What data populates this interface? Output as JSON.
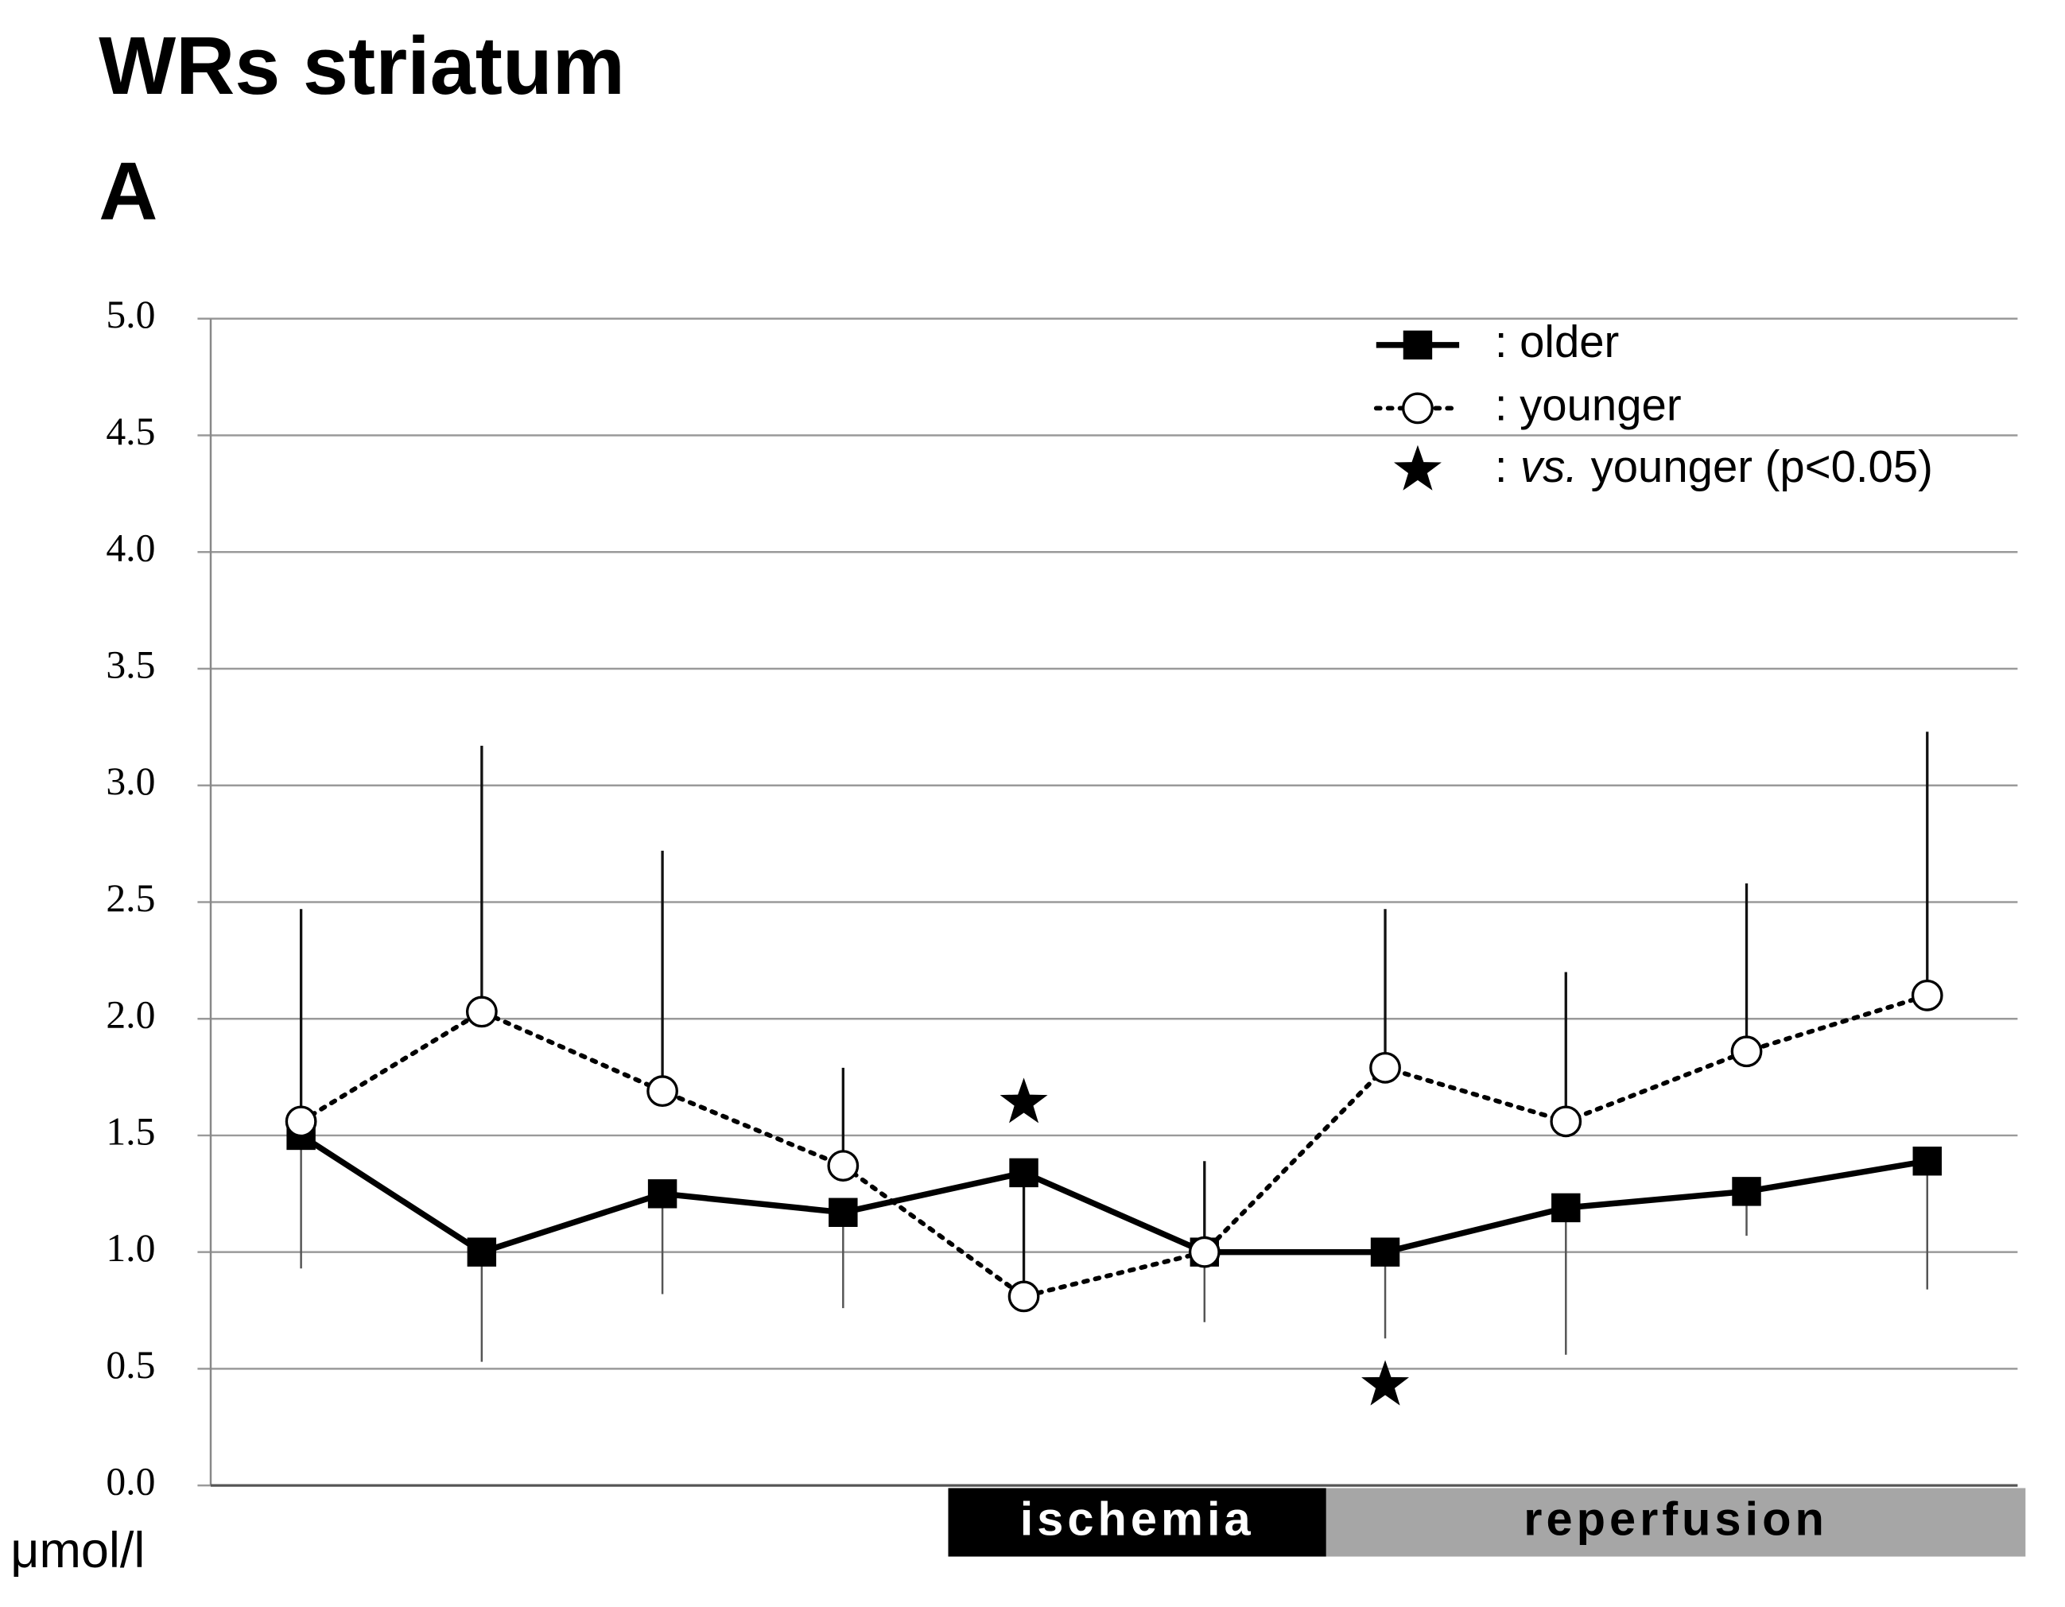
{
  "chart_data": {
    "type": "line",
    "title": "WRs striatum",
    "panel_label": "A",
    "y_unit": "μmol/l",
    "categories": [
      null,
      null,
      null,
      null,
      null,
      null,
      null,
      null,
      null,
      null
    ],
    "ylim": [
      0,
      5
    ],
    "yticks": [
      {
        "value": 0,
        "label": "0.0"
      },
      {
        "value": 0.5,
        "label": "0.5"
      },
      {
        "value": 1,
        "label": "1.0"
      },
      {
        "value": 1.5,
        "label": "1.5"
      },
      {
        "value": 2,
        "label": "2.0"
      },
      {
        "value": 2.5,
        "label": "2.5"
      },
      {
        "value": 3,
        "label": "3.0"
      },
      {
        "value": 3.5,
        "label": "3.5"
      },
      {
        "value": 4,
        "label": "4.0"
      },
      {
        "value": 4.5,
        "label": "4.5"
      },
      {
        "value": 5,
        "label": "5.0"
      }
    ],
    "grid": true,
    "series": [
      {
        "name": ": older",
        "color": "#000000",
        "line_style": "solid",
        "marker": "square",
        "error_direction": "down",
        "values": [
          1.5,
          1.0,
          1.25,
          1.17,
          1.34,
          1.0,
          1.0,
          1.19,
          1.26,
          1.39
        ],
        "errors": [
          0.57,
          0.47,
          0.43,
          0.41,
          0.5,
          0.3,
          0.37,
          0.63,
          0.19,
          0.55
        ]
      },
      {
        "name": ": younger",
        "color": "#000000",
        "line_style": "dotted",
        "marker": "circle",
        "error_direction": "up",
        "values": [
          1.56,
          2.03,
          1.69,
          1.37,
          0.81,
          1.0,
          1.79,
          1.56,
          1.86,
          2.1
        ],
        "errors": [
          0.91,
          1.14,
          1.03,
          0.42,
          0.53,
          0.39,
          0.68,
          0.64,
          0.72,
          1.13
        ]
      }
    ],
    "significance": {
      "prefix": ":",
      "italic": "vs.",
      "text": "younger (p<0.05)",
      "values": [
        null,
        null,
        null,
        null,
        1.64,
        null,
        0.43,
        null,
        null,
        null
      ]
    },
    "phases": [
      {
        "label": "ischemia",
        "color": "#000000",
        "text_color": "#ffffff"
      },
      {
        "label": "reperfusion",
        "color": "#a6a6a6",
        "text_color": "#000000"
      }
    ]
  }
}
